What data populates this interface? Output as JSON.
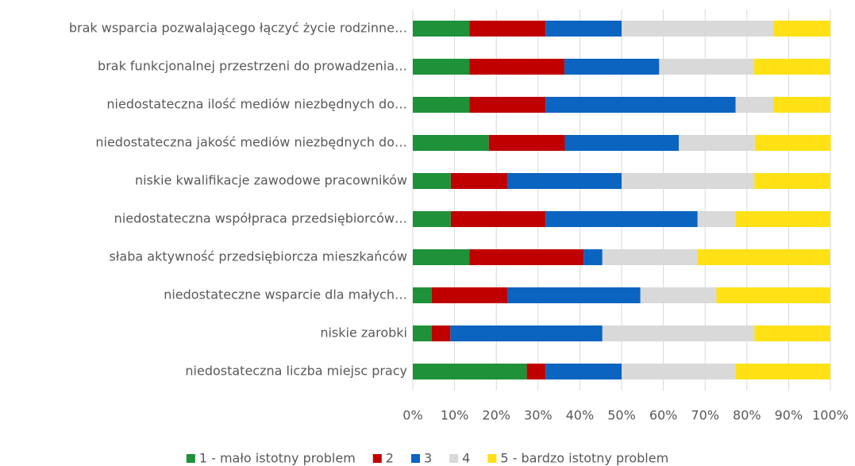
{
  "chart_data": {
    "type": "stacked_bar_horizontal",
    "categories": [
      "brak wsparcia pozwalającego łączyć życie rodzinne…",
      "brak funkcjonalnej przestrzeni do prowadzenia…",
      "niedostateczna ilość mediów niezbędnych do…",
      "niedostateczna jakość mediów niezbędnych do…",
      "niskie kwalifikacje zawodowe pracowników",
      "niedostateczna współpraca przedsiębiorców…",
      "słaba aktywność przedsiębiorcza mieszkańców",
      "niedostateczne wsparcie dla małych…",
      "niskie zarobki",
      "niedostateczna liczba miejsc pracy"
    ],
    "series": [
      {
        "name": "1 - mało istotny problem",
        "color": "#1e9139",
        "values": [
          13.6,
          13.6,
          13.6,
          18.2,
          9.1,
          9.1,
          13.6,
          4.5,
          4.5,
          27.3
        ]
      },
      {
        "name": "2",
        "color": "#c00000",
        "values": [
          18.2,
          22.7,
          18.2,
          18.2,
          13.6,
          22.7,
          27.3,
          18.2,
          4.5,
          4.5
        ]
      },
      {
        "name": "3",
        "color": "#0a64c0",
        "values": [
          18.2,
          22.7,
          45.5,
          27.3,
          27.3,
          36.4,
          4.5,
          31.8,
          36.4,
          18.2
        ]
      },
      {
        "name": "4",
        "color": "#d9d9d9",
        "values": [
          36.4,
          22.7,
          9.1,
          18.2,
          31.8,
          9.1,
          22.7,
          18.2,
          36.4,
          27.3
        ]
      },
      {
        "name": "5 - bardzo istotny problem",
        "color": "#ffe116",
        "values": [
          13.6,
          18.2,
          13.6,
          18.2,
          18.2,
          22.7,
          31.8,
          27.3,
          18.2,
          22.7
        ]
      }
    ],
    "xlim": [
      0,
      100
    ],
    "xticks": [
      {
        "value": 0,
        "label": "0%"
      },
      {
        "value": 10,
        "label": "10%"
      },
      {
        "value": 20,
        "label": "20%"
      },
      {
        "value": 30,
        "label": "30%"
      },
      {
        "value": 40,
        "label": "40%"
      },
      {
        "value": 50,
        "label": "50%"
      },
      {
        "value": 60,
        "label": "60%"
      },
      {
        "value": 70,
        "label": "70%"
      },
      {
        "value": 80,
        "label": "80%"
      },
      {
        "value": 90,
        "label": "90%"
      },
      {
        "value": 100,
        "label": "100%"
      }
    ],
    "grid": true,
    "legend": "bottom"
  }
}
